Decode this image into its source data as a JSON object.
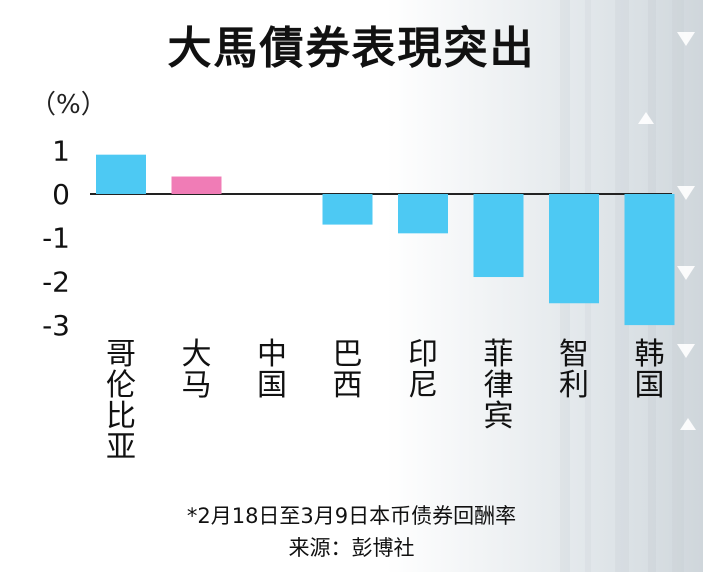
{
  "title": "大馬債券表現突出",
  "unit_label": "（%）",
  "footnote": "*2月18日至3月9日本币债券回酬率",
  "source": "来源：彭博社",
  "colors": {
    "bar": "#4dc9f3",
    "highlight": "#f07cb6",
    "axis": "#222222"
  },
  "chart_data": {
    "type": "bar",
    "categories": [
      "哥伦比亚",
      "大马",
      "中国",
      "巴西",
      "印尼",
      "菲律宾",
      "智利",
      "韩国"
    ],
    "values": [
      0.9,
      0.4,
      0.0,
      -0.7,
      -0.9,
      -1.9,
      -2.5,
      -3.0
    ],
    "highlight_index": 1,
    "y_ticks": [
      "1",
      "0",
      "-1",
      "-2",
      "-3"
    ],
    "ylim": [
      -3.2,
      1.2
    ],
    "xlabel": "",
    "ylabel": "（%）",
    "grid": false,
    "legend": "none"
  }
}
